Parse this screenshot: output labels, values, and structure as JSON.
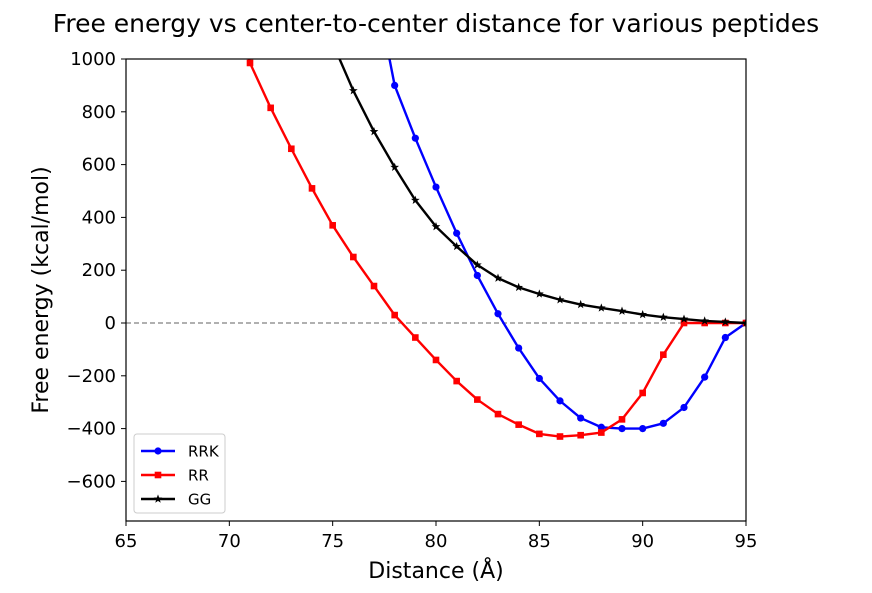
{
  "chart_data": {
    "type": "line",
    "title": "Free energy vs center-to-center distance for various peptides",
    "xlabel": "Distance (Å)",
    "ylabel": "Free energy (kcal/mol)",
    "xlim": [
      65,
      95
    ],
    "ylim": [
      -750,
      1000
    ],
    "xticks": [
      65,
      70,
      75,
      80,
      85,
      90,
      95
    ],
    "yticks": [
      -600,
      -400,
      -200,
      0,
      200,
      400,
      600,
      800,
      1000
    ],
    "xtick_labels": [
      "65",
      "70",
      "75",
      "80",
      "85",
      "90",
      "95"
    ],
    "ytick_labels": [
      "−600",
      "−400",
      "−200",
      "0",
      "200",
      "400",
      "600",
      "800",
      "1000"
    ],
    "grid": false,
    "reference_line": {
      "y": 0,
      "style": "dashed",
      "color": "#808080"
    },
    "legend": {
      "position": "lower-left"
    },
    "series": [
      {
        "name": "RRK",
        "color": "#0000ff",
        "marker": "circle",
        "x": [
          78,
          79,
          80,
          81,
          82,
          83,
          84,
          85,
          86,
          87,
          88,
          89,
          90,
          91,
          92,
          93,
          94,
          95
        ],
        "y": [
          900,
          700,
          515,
          340,
          180,
          35,
          -95,
          -210,
          -295,
          -360,
          -395,
          -400,
          -400,
          -380,
          -320,
          -205,
          -55,
          0
        ]
      },
      {
        "name": "RR",
        "color": "#ff0000",
        "marker": "square",
        "x": [
          71,
          72,
          73,
          74,
          75,
          76,
          77,
          78,
          79,
          80,
          81,
          82,
          83,
          84,
          85,
          86,
          87,
          88,
          89,
          90,
          91,
          92,
          93,
          94,
          95
        ],
        "y": [
          985,
          815,
          660,
          510,
          370,
          250,
          140,
          30,
          -55,
          -140,
          -220,
          -290,
          -345,
          -385,
          -420,
          -430,
          -425,
          -415,
          -365,
          -265,
          -120,
          0,
          0,
          0,
          0
        ]
      },
      {
        "name": "GG",
        "color": "#000000",
        "marker": "star",
        "x": [
          76,
          77,
          78,
          79,
          80,
          81,
          82,
          83,
          84,
          85,
          86,
          87,
          88,
          89,
          90,
          91,
          92,
          93,
          94,
          95
        ],
        "y": [
          880,
          725,
          590,
          465,
          365,
          290,
          220,
          170,
          135,
          110,
          88,
          70,
          57,
          45,
          32,
          22,
          15,
          8,
          4,
          0
        ]
      }
    ],
    "series_lines": [
      {
        "x": [
          77.5,
          78
        ],
        "y": [
          1100,
          900
        ]
      },
      {
        "x": [
          70.8,
          71
        ],
        "y": [
          1050,
          985
        ]
      },
      {
        "x": [
          75,
          76
        ],
        "y": [
          1060,
          880
        ]
      }
    ]
  }
}
